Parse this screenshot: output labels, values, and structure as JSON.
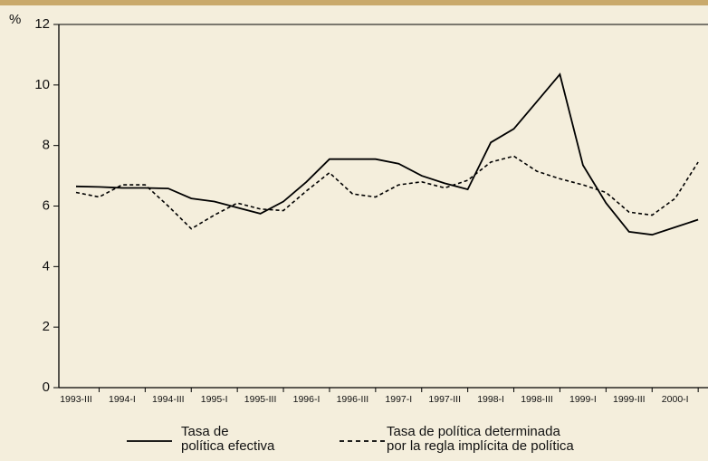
{
  "chart_data": {
    "type": "line",
    "y_unit": "%",
    "categories": [
      "1993-III",
      null,
      "1994-I",
      null,
      "1994-III",
      null,
      "1995-I",
      null,
      "1995-III",
      null,
      "1996-I",
      null,
      "1996-III",
      null,
      "1997-I",
      null,
      "1997-III",
      null,
      "1998-I",
      null,
      "1998-III",
      null,
      "1999-I",
      null,
      "1999-III",
      null,
      "2000-I",
      null
    ],
    "series": [
      {
        "name": "Tasa de\npolítica efectiva",
        "color": "#000000",
        "dash": "solid",
        "values": [
          6.65,
          6.63,
          6.6,
          6.6,
          6.58,
          6.25,
          6.15,
          5.95,
          5.75,
          6.15,
          6.8,
          7.55,
          7.55,
          7.55,
          7.4,
          7.0,
          6.75,
          6.55,
          8.1,
          8.55,
          9.45,
          10.35,
          7.35,
          6.1,
          5.15,
          5.05,
          5.3,
          5.55
        ]
      },
      {
        "name": "Tasa de política determinada\npor la regla implícita de política",
        "color": "#000000",
        "dash": "dashed",
        "values": [
          6.45,
          6.3,
          6.7,
          6.7,
          6.0,
          5.25,
          5.7,
          6.1,
          5.9,
          5.85,
          6.5,
          7.1,
          6.4,
          6.3,
          6.7,
          6.8,
          6.6,
          6.85,
          7.45,
          7.65,
          7.15,
          6.9,
          6.7,
          6.45,
          5.8,
          5.7,
          6.25,
          7.45
        ]
      }
    ],
    "ylim": [
      0,
      12
    ],
    "yticks": [
      0,
      2,
      4,
      6,
      8,
      10,
      12
    ],
    "grid": false
  }
}
